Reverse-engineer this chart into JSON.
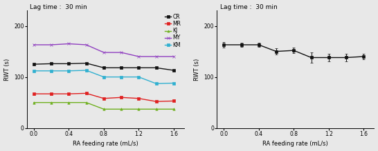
{
  "x": [
    0,
    0.2,
    0.4,
    0.6,
    0.8,
    1.0,
    1.2,
    1.4,
    1.6
  ],
  "left": {
    "title": "Lag time :  30 min",
    "xlabel": "RA feeding rate (mL/s)",
    "ylabel": "RWT (s)",
    "ylim": [
      0,
      230
    ],
    "yticks": [
      0,
      100,
      200
    ],
    "series": {
      "CR": {
        "color": "#111111",
        "marker": "s",
        "y": [
          125,
          126,
          126,
          127,
          118,
          118,
          118,
          118,
          113
        ]
      },
      "MR": {
        "color": "#e02020",
        "marker": "s",
        "y": [
          67,
          67,
          67,
          68,
          58,
          60,
          58,
          52,
          53
        ]
      },
      "KJ": {
        "color": "#70b020",
        "marker": "^",
        "y": [
          50,
          50,
          50,
          50,
          37,
          37,
          37,
          37,
          37
        ]
      },
      "MY": {
        "color": "#9040c0",
        "marker": "x",
        "y": [
          163,
          163,
          165,
          163,
          148,
          148,
          140,
          140,
          140
        ]
      },
      "KM": {
        "color": "#30b0d0",
        "marker": "s",
        "y": [
          112,
          112,
          112,
          113,
          100,
          100,
          100,
          87,
          88
        ]
      }
    }
  },
  "right": {
    "title": "Lag time :  30 min",
    "xlabel": "RA feeding rate (mL/s)",
    "ylabel": "RWT (s)",
    "ylim": [
      0,
      230
    ],
    "yticks": [
      0,
      100,
      200
    ],
    "y": [
      163,
      163,
      163,
      150,
      152,
      138,
      138,
      138,
      140
    ],
    "yerr": [
      5,
      4,
      4,
      6,
      5,
      10,
      8,
      8,
      5
    ],
    "color": "#111111",
    "marker": "s"
  },
  "fig_bg": "#e8e8e8",
  "legend_names": [
    "CR",
    "MR",
    "KJ",
    "MY",
    "KM"
  ]
}
